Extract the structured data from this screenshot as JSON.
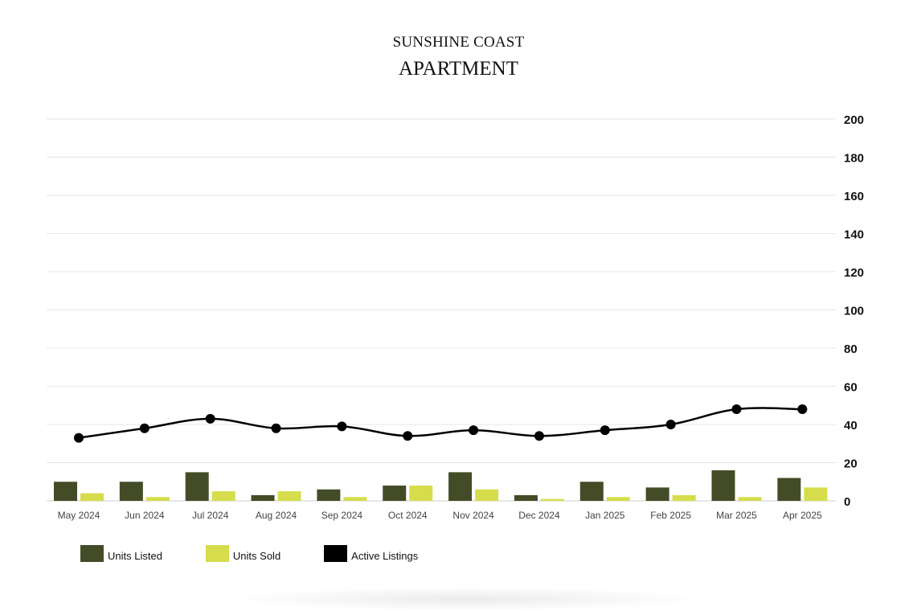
{
  "header": {
    "title": "SUNSHINE COAST",
    "subtitle": "APARTMENT"
  },
  "legend": {
    "units_listed": "Units Listed",
    "units_sold": "Units Sold",
    "active_listings": "Active Listings"
  },
  "colors": {
    "units_listed": "#434c27",
    "units_sold": "#d6dd4c",
    "active_listings": "#000000",
    "grid": "#e6e6e6"
  },
  "chart_data": {
    "type": "bar",
    "categories": [
      "May 2024",
      "Jun 2024",
      "Jul 2024",
      "Aug 2024",
      "Sep 2024",
      "Oct 2024",
      "Nov 2024",
      "Dec 2024",
      "Jan 2025",
      "Feb 2025",
      "Mar 2025",
      "Apr 2025"
    ],
    "series": [
      {
        "name": "Units Listed",
        "type": "bar",
        "values": [
          10,
          10,
          15,
          3,
          6,
          8,
          15,
          3,
          10,
          7,
          16,
          12
        ]
      },
      {
        "name": "Units Sold",
        "type": "bar",
        "values": [
          4,
          2,
          5,
          5,
          2,
          8,
          6,
          1,
          2,
          3,
          2,
          7
        ]
      },
      {
        "name": "Active Listings",
        "type": "line",
        "values": [
          33,
          38,
          43,
          38,
          39,
          34,
          37,
          34,
          37,
          40,
          48,
          48
        ]
      }
    ],
    "ylim": [
      0,
      200
    ],
    "yticks": [
      "0",
      "20",
      "40",
      "60",
      "80",
      "100",
      "120",
      "140",
      "160",
      "180",
      "200"
    ],
    "y_axis_side": "right",
    "grid": true,
    "legend_position": "bottom-left"
  }
}
